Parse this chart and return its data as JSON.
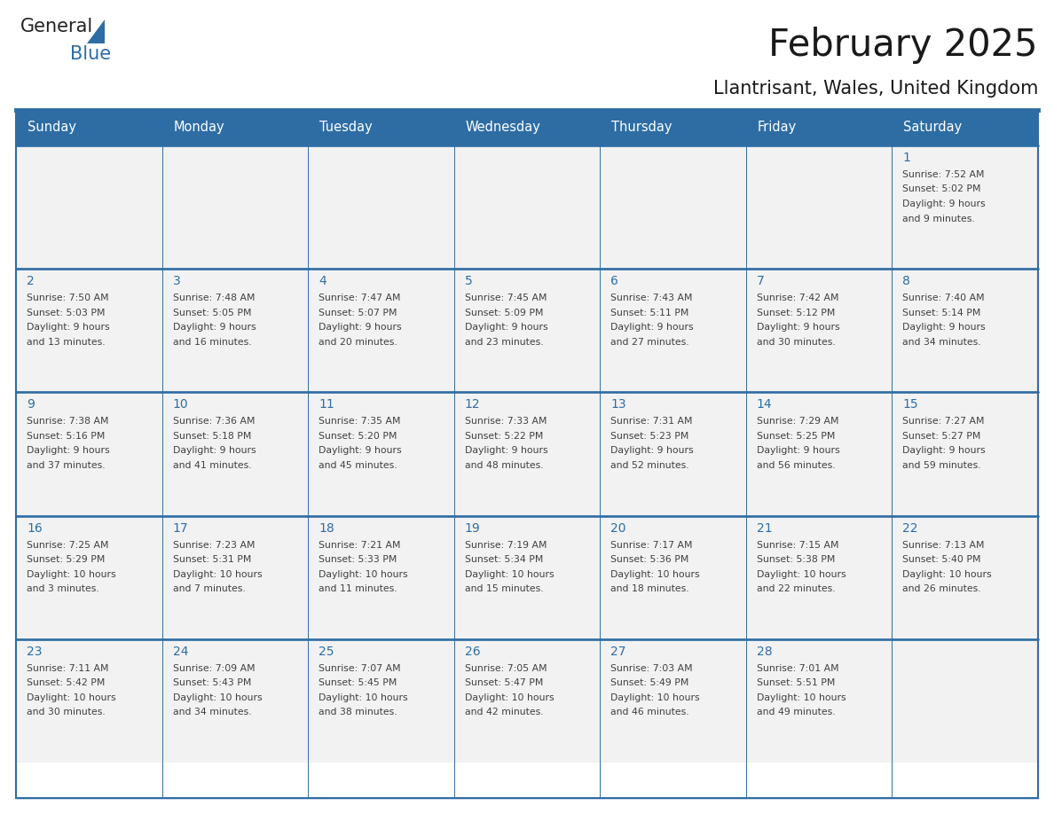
{
  "title": "February 2025",
  "subtitle": "Llantrisant, Wales, United Kingdom",
  "days_of_week": [
    "Sunday",
    "Monday",
    "Tuesday",
    "Wednesday",
    "Thursday",
    "Friday",
    "Saturday"
  ],
  "header_bg": "#2E6DA4",
  "header_text": "#FFFFFF",
  "cell_bg": "#F2F2F2",
  "border_color": "#2E6DA4",
  "text_color": "#404040",
  "day_num_color": "#2E6DA4",
  "calendar_data": [
    [
      null,
      null,
      null,
      null,
      null,
      null,
      {
        "day": 1,
        "sunrise": "7:52 AM",
        "sunset": "5:02 PM",
        "daylight": "9 hours and 9 minutes"
      }
    ],
    [
      {
        "day": 2,
        "sunrise": "7:50 AM",
        "sunset": "5:03 PM",
        "daylight": "9 hours and 13 minutes"
      },
      {
        "day": 3,
        "sunrise": "7:48 AM",
        "sunset": "5:05 PM",
        "daylight": "9 hours and 16 minutes"
      },
      {
        "day": 4,
        "sunrise": "7:47 AM",
        "sunset": "5:07 PM",
        "daylight": "9 hours and 20 minutes"
      },
      {
        "day": 5,
        "sunrise": "7:45 AM",
        "sunset": "5:09 PM",
        "daylight": "9 hours and 23 minutes"
      },
      {
        "day": 6,
        "sunrise": "7:43 AM",
        "sunset": "5:11 PM",
        "daylight": "9 hours and 27 minutes"
      },
      {
        "day": 7,
        "sunrise": "7:42 AM",
        "sunset": "5:12 PM",
        "daylight": "9 hours and 30 minutes"
      },
      {
        "day": 8,
        "sunrise": "7:40 AM",
        "sunset": "5:14 PM",
        "daylight": "9 hours and 34 minutes"
      }
    ],
    [
      {
        "day": 9,
        "sunrise": "7:38 AM",
        "sunset": "5:16 PM",
        "daylight": "9 hours and 37 minutes"
      },
      {
        "day": 10,
        "sunrise": "7:36 AM",
        "sunset": "5:18 PM",
        "daylight": "9 hours and 41 minutes"
      },
      {
        "day": 11,
        "sunrise": "7:35 AM",
        "sunset": "5:20 PM",
        "daylight": "9 hours and 45 minutes"
      },
      {
        "day": 12,
        "sunrise": "7:33 AM",
        "sunset": "5:22 PM",
        "daylight": "9 hours and 48 minutes"
      },
      {
        "day": 13,
        "sunrise": "7:31 AM",
        "sunset": "5:23 PM",
        "daylight": "9 hours and 52 minutes"
      },
      {
        "day": 14,
        "sunrise": "7:29 AM",
        "sunset": "5:25 PM",
        "daylight": "9 hours and 56 minutes"
      },
      {
        "day": 15,
        "sunrise": "7:27 AM",
        "sunset": "5:27 PM",
        "daylight": "9 hours and 59 minutes"
      }
    ],
    [
      {
        "day": 16,
        "sunrise": "7:25 AM",
        "sunset": "5:29 PM",
        "daylight": "10 hours and 3 minutes"
      },
      {
        "day": 17,
        "sunrise": "7:23 AM",
        "sunset": "5:31 PM",
        "daylight": "10 hours and 7 minutes"
      },
      {
        "day": 18,
        "sunrise": "7:21 AM",
        "sunset": "5:33 PM",
        "daylight": "10 hours and 11 minutes"
      },
      {
        "day": 19,
        "sunrise": "7:19 AM",
        "sunset": "5:34 PM",
        "daylight": "10 hours and 15 minutes"
      },
      {
        "day": 20,
        "sunrise": "7:17 AM",
        "sunset": "5:36 PM",
        "daylight": "10 hours and 18 minutes"
      },
      {
        "day": 21,
        "sunrise": "7:15 AM",
        "sunset": "5:38 PM",
        "daylight": "10 hours and 22 minutes"
      },
      {
        "day": 22,
        "sunrise": "7:13 AM",
        "sunset": "5:40 PM",
        "daylight": "10 hours and 26 minutes"
      }
    ],
    [
      {
        "day": 23,
        "sunrise": "7:11 AM",
        "sunset": "5:42 PM",
        "daylight": "10 hours and 30 minutes"
      },
      {
        "day": 24,
        "sunrise": "7:09 AM",
        "sunset": "5:43 PM",
        "daylight": "10 hours and 34 minutes"
      },
      {
        "day": 25,
        "sunrise": "7:07 AM",
        "sunset": "5:45 PM",
        "daylight": "10 hours and 38 minutes"
      },
      {
        "day": 26,
        "sunrise": "7:05 AM",
        "sunset": "5:47 PM",
        "daylight": "10 hours and 42 minutes"
      },
      {
        "day": 27,
        "sunrise": "7:03 AM",
        "sunset": "5:49 PM",
        "daylight": "10 hours and 46 minutes"
      },
      {
        "day": 28,
        "sunrise": "7:01 AM",
        "sunset": "5:51 PM",
        "daylight": "10 hours and 49 minutes"
      },
      null
    ]
  ],
  "logo_text_general": "General",
  "logo_text_blue": "Blue",
  "logo_triangle_color": "#2E6DA4"
}
